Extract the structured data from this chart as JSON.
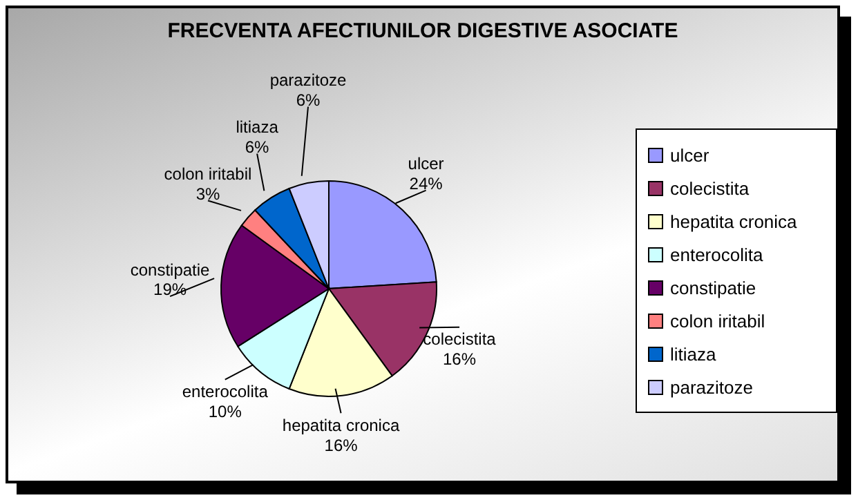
{
  "chart_data": {
    "type": "pie",
    "title": "FRECVENTA AFECTIUNILOR DIGESTIVE ASOCIATE",
    "categories": [
      "ulcer",
      "colecistita",
      "hepatita cronica",
      "enterocolita",
      "constipatie",
      "colon iritabil",
      "litiaza",
      "parazitoze"
    ],
    "values": [
      24,
      16,
      16,
      10,
      19,
      3,
      6,
      6
    ],
    "value_labels": [
      "24%",
      "16%",
      "16%",
      "10%",
      "19%",
      "3%",
      "6%",
      "6%"
    ],
    "colors": [
      "#9999ff",
      "#993366",
      "#ffffcc",
      "#ccffff",
      "#660066",
      "#ff8080",
      "#0066cc",
      "#ccccff"
    ],
    "legend": "right"
  }
}
